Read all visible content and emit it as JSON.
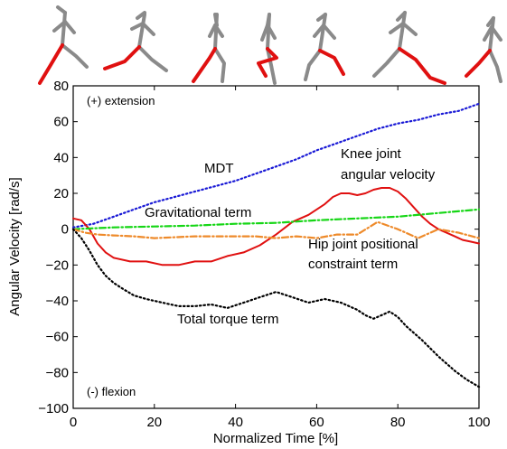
{
  "chart_data": {
    "type": "line",
    "xlabel": "Normalized Time [%]",
    "ylabel": "Angular Velocity [rad/s]",
    "xlim": [
      0,
      100
    ],
    "ylim": [
      -100,
      80
    ],
    "x_ticks": [
      "0",
      "20",
      "40",
      "60",
      "80",
      "100"
    ],
    "y_ticks": [
      "80",
      "60",
      "40",
      "20",
      "0",
      "−20",
      "−40",
      "−60",
      "−80",
      "−100"
    ],
    "x_tick_values": [
      0,
      20,
      40,
      60,
      80,
      100
    ],
    "y_tick_values": [
      80,
      60,
      40,
      20,
      0,
      -20,
      -40,
      -60,
      -80,
      -100
    ],
    "grid": false,
    "legend": "none",
    "annotations": {
      "extension": "(+) extension",
      "flexion": "(-) flexion",
      "mdt": "MDT",
      "knee_line1": "Knee joint",
      "knee_line2": "angular velocity",
      "gravitational": "Gravitational term",
      "hip_line1": "Hip joint positional",
      "hip_line2": "constraint term",
      "total": "Total torque term"
    },
    "series": [
      {
        "key": "mdt",
        "color": "#1a1ad6",
        "style": "dotted",
        "x": [
          0,
          5,
          10,
          15,
          20,
          25,
          30,
          35,
          40,
          45,
          50,
          55,
          60,
          65,
          70,
          75,
          80,
          85,
          90,
          95,
          100
        ],
        "y": [
          1,
          3,
          7,
          11,
          15,
          18,
          21,
          24,
          27,
          31,
          35,
          39,
          44,
          48,
          52,
          56,
          59,
          61,
          64,
          66,
          70
        ]
      },
      {
        "key": "knee",
        "color": "#e01010",
        "style": "solid",
        "x": [
          0,
          2,
          4,
          6,
          8,
          10,
          14,
          18,
          22,
          26,
          30,
          34,
          38,
          42,
          46,
          50,
          54,
          58,
          62,
          64,
          66,
          68,
          70,
          72,
          74,
          76,
          78,
          80,
          82,
          84,
          86,
          88,
          90,
          92,
          94,
          96,
          98,
          100
        ],
        "y": [
          6,
          5,
          0,
          -8,
          -13,
          -16,
          -18,
          -18,
          -20,
          -20,
          -18,
          -18,
          -15,
          -13,
          -9,
          -3,
          4,
          8,
          14,
          18,
          20,
          20,
          19,
          20,
          22,
          23,
          23,
          21,
          17,
          12,
          7,
          3,
          0,
          -2,
          -4,
          -6,
          -7,
          -8
        ]
      },
      {
        "key": "gravitational",
        "color": "#16d616",
        "style": "dashdot",
        "x": [
          0,
          10,
          20,
          30,
          40,
          50,
          60,
          70,
          80,
          90,
          100
        ],
        "y": [
          0,
          1,
          1.5,
          2,
          3,
          3.5,
          5,
          6,
          7,
          9,
          11
        ]
      },
      {
        "key": "hip",
        "color": "#ee8a2a",
        "style": "dashdot",
        "x": [
          0,
          3,
          6,
          10,
          15,
          20,
          25,
          30,
          35,
          40,
          45,
          50,
          55,
          60,
          65,
          70,
          75,
          80,
          85,
          90,
          95,
          100
        ],
        "y": [
          0,
          -2,
          -3,
          -3.5,
          -4,
          -5,
          -4.5,
          -4,
          -4,
          -4,
          -4,
          -5,
          -4,
          -5,
          -3,
          -3,
          4,
          0,
          -5,
          0,
          -2,
          -5
        ]
      },
      {
        "key": "total",
        "color": "#000000",
        "style": "dotted",
        "x": [
          0,
          2,
          4,
          6,
          8,
          10,
          12,
          15,
          18,
          22,
          26,
          30,
          34,
          38,
          42,
          46,
          50,
          54,
          58,
          62,
          66,
          70,
          72,
          74,
          76,
          78,
          80,
          82,
          86,
          90,
          94,
          97,
          100
        ],
        "y": [
          0,
          -5,
          -12,
          -20,
          -26,
          -30,
          -33,
          -37,
          -39,
          -41,
          -43,
          -43,
          -42,
          -44,
          -41,
          -38,
          -35,
          -38,
          -41,
          -39,
          -41,
          -45,
          -48,
          -50,
          -48,
          -46,
          -49,
          -54,
          -62,
          -71,
          -79,
          -84,
          -88
        ]
      }
    ]
  },
  "figures": [
    {
      "limb_color": "#e01010",
      "body_color": "#8a8a8a"
    }
  ]
}
